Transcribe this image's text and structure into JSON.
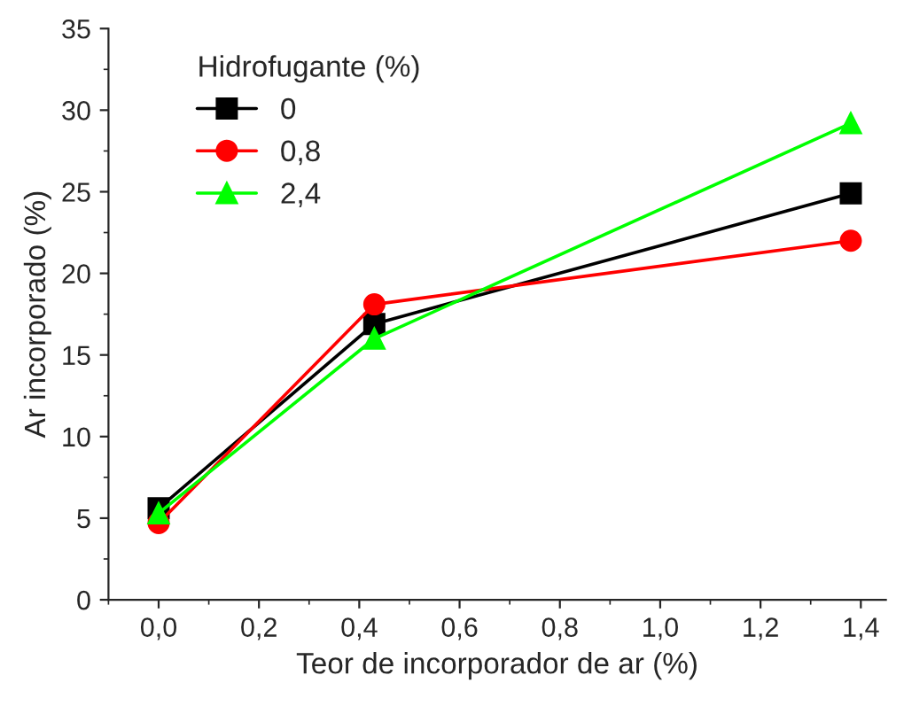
{
  "chart_data": {
    "type": "line",
    "xlabel": "Teor de incorporador de ar (%)",
    "ylabel": "Ar incorporado (%)",
    "legend_title": "Hidrofugante (%)",
    "legend": "top left",
    "grid": false,
    "xlim": [
      -0.1,
      1.45
    ],
    "xticks": [
      {
        "value": 0,
        "label": "0,0"
      },
      {
        "value": 0.2,
        "label": "0,2"
      },
      {
        "value": 0.4,
        "label": "0,4"
      },
      {
        "value": 0.6,
        "label": "0,6"
      },
      {
        "value": 0.8,
        "label": "0,8"
      },
      {
        "value": 1.0,
        "label": "1,0"
      },
      {
        "value": 1.2,
        "label": "1,2"
      },
      {
        "value": 1.4,
        "label": "1,4"
      }
    ],
    "ylim": [
      0,
      35
    ],
    "yticks": [
      0,
      5,
      10,
      15,
      20,
      25,
      30,
      35
    ],
    "series": [
      {
        "name": "0",
        "color": "#000000",
        "marker": "square",
        "x": [
          0.0,
          0.43,
          1.38
        ],
        "values": [
          5.6,
          16.9,
          24.9
        ]
      },
      {
        "name": "0,8",
        "color": "#ff0000",
        "marker": "circle",
        "x": [
          0.0,
          0.43,
          1.38
        ],
        "values": [
          4.7,
          18.1,
          22.0
        ]
      },
      {
        "name": "2,4",
        "color": "#00ff00",
        "marker": "triangle",
        "x": [
          0.0,
          0.43,
          1.38
        ],
        "values": [
          5.3,
          16.0,
          29.2
        ]
      }
    ]
  }
}
